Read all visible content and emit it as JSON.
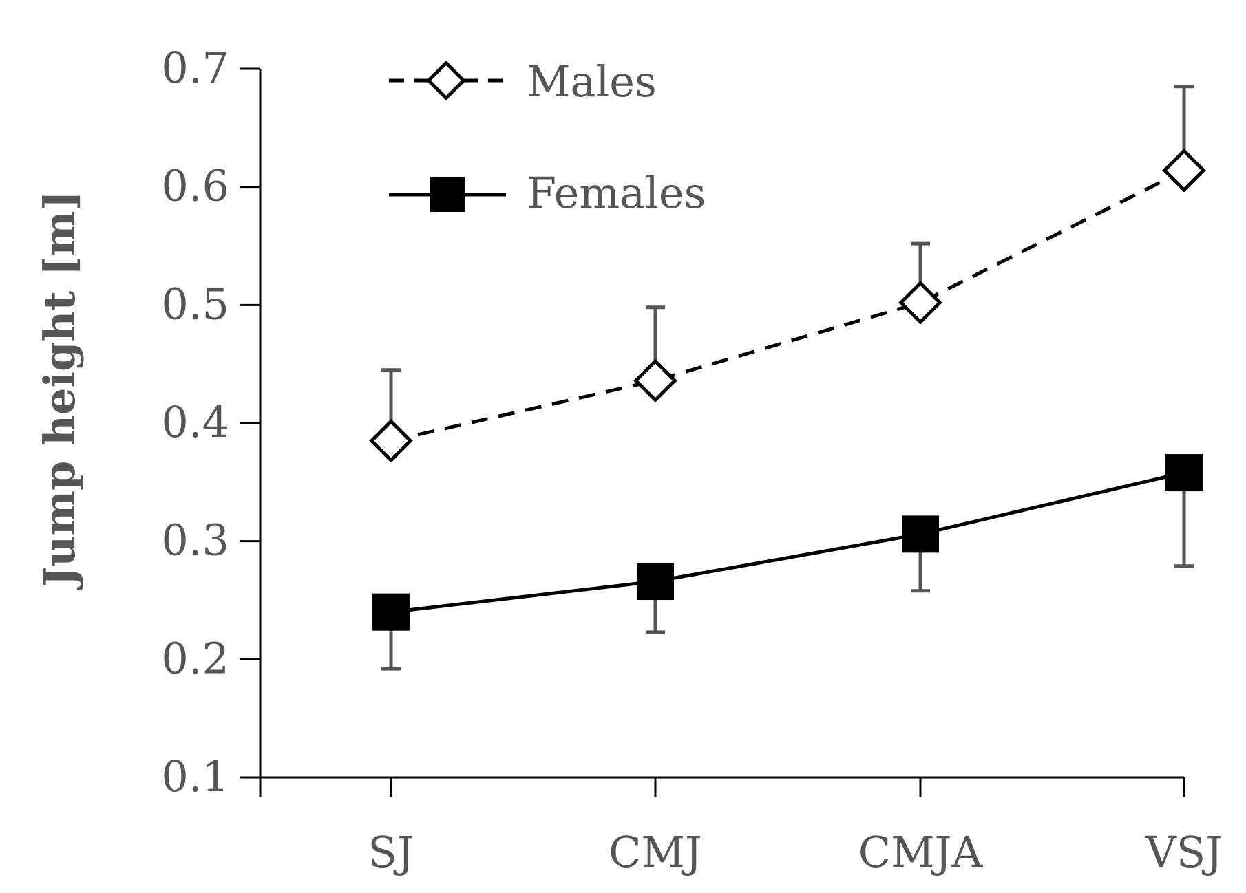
{
  "chart_data": {
    "type": "line",
    "title": "",
    "xlabel": "",
    "ylabel": "Jump height [m]",
    "ylim": [
      0.1,
      0.7
    ],
    "yticks": [
      "0.1",
      "0.2",
      "0.3",
      "0.4",
      "0.5",
      "0.6",
      "0.7"
    ],
    "grid": false,
    "legend_position": "top-left",
    "categories": [
      "SJ",
      "CMJ",
      "CMJA",
      "VSJ"
    ],
    "series": [
      {
        "name": "Males",
        "marker": "open-diamond",
        "line_style": "dashed",
        "color": "#000000",
        "values": [
          0.385,
          0.436,
          0.502,
          0.614
        ],
        "error": [
          0.06,
          0.062,
          0.05,
          0.071
        ],
        "error_direction": "up"
      },
      {
        "name": "Females",
        "marker": "filled-square",
        "line_style": "solid",
        "color": "#000000",
        "values": [
          0.24,
          0.266,
          0.306,
          0.358
        ],
        "error": [
          0.048,
          0.043,
          0.048,
          0.079
        ],
        "error_direction": "down"
      }
    ]
  },
  "colors": {
    "axis": "#000000",
    "text": "#555555",
    "errorbar": "#555555"
  }
}
